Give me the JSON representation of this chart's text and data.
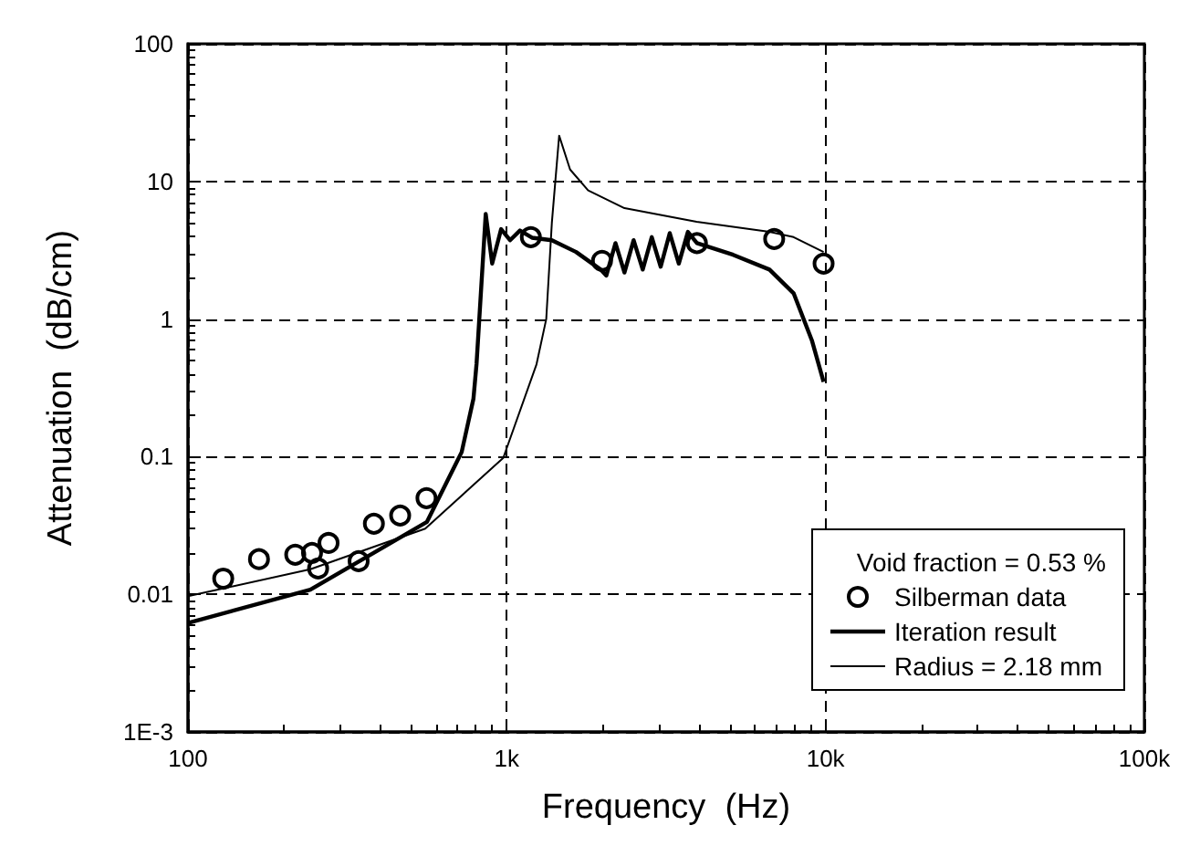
{
  "chart_data": {
    "type": "line",
    "xlabel": "Frequency  (Hz)",
    "ylabel": "Attenuation  (dB/cm)",
    "legend_title": "Void fraction = 0.53 %",
    "log": "xy",
    "xlim": [
      100,
      100000
    ],
    "xticks": [
      100,
      {
        "value": 1000,
        "label": "1k"
      },
      {
        "value": 10000,
        "label": "10k"
      },
      {
        "value": 100000,
        "label": "100k"
      }
    ],
    "ylim": [
      0.001,
      100
    ],
    "yticks": [
      {
        "value": 0.001,
        "label": "1E-3"
      },
      0.01,
      0.1,
      1,
      10,
      100
    ],
    "grid": true,
    "legend": "bottom right",
    "series": [
      {
        "name": "Silberman data",
        "type": "scatter",
        "marker": "circle",
        "color": "#000000",
        "x": [
          129,
          167,
          217,
          245,
          256,
          276,
          343,
          383,
          463,
          560,
          1190,
          1990,
          3950,
          6900,
          9860
        ],
        "values": [
          0.013,
          0.018,
          0.0194,
          0.02,
          0.0154,
          0.0236,
          0.0174,
          0.0326,
          0.0374,
          0.05,
          3.94,
          2.65,
          3.56,
          3.82,
          2.53
        ]
      },
      {
        "name": "Iteration result",
        "marker": "none",
        "line_style": "solid",
        "color": "#000000",
        "x": [
          100,
          242,
          562,
          722,
          786,
          804,
          859,
          900,
          960,
          1024,
          1100,
          1200,
          1385,
          1650,
          1970,
          2053,
          2193,
          2340,
          2500,
          2670,
          2850,
          3040,
          3245,
          3465,
          3700,
          3950,
          5130,
          6670,
          7940,
          9060,
          9860
        ],
        "values": [
          0.0062,
          0.0108,
          0.0336,
          0.108,
          0.263,
          0.474,
          5.8,
          2.53,
          4.5,
          3.74,
          4.4,
          3.9,
          3.74,
          3.07,
          2.29,
          2.07,
          3.56,
          2.18,
          3.74,
          2.29,
          3.94,
          2.4,
          4.21,
          2.53,
          4.3,
          3.56,
          2.93,
          2.29,
          1.54,
          0.7,
          0.35
        ]
      },
      {
        "name": "Radius = 2.18 mm",
        "marker": "none",
        "line_style": "solid",
        "color": "#000000",
        "x": [
          100,
          242,
          555,
          975,
          1240,
          1330,
          1385,
          1460,
          1580,
          1800,
          2340,
          3940,
          6670,
          7940,
          9860
        ],
        "values": [
          0.0097,
          0.0152,
          0.03,
          0.098,
          0.47,
          1.0,
          5.0,
          21.5,
          12.2,
          8.6,
          6.4,
          5.1,
          4.3,
          3.94,
          3.07
        ]
      }
    ]
  }
}
